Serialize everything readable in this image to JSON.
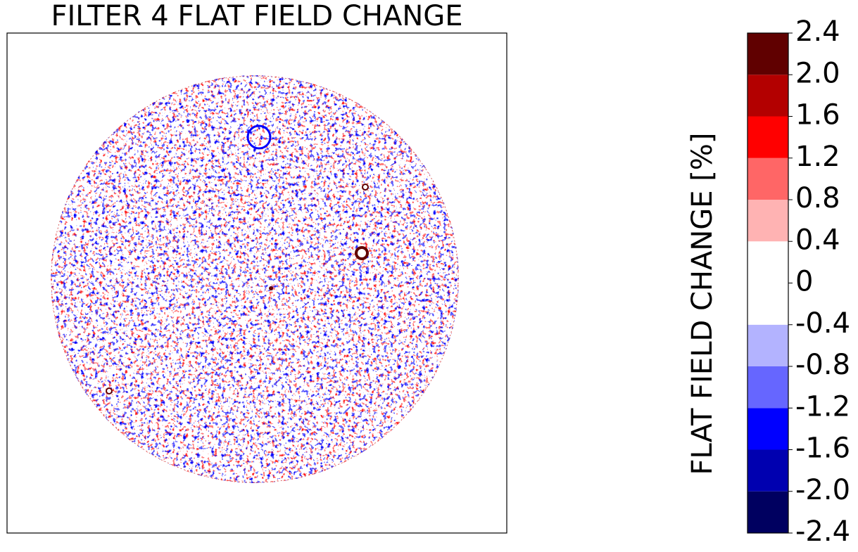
{
  "chart_data": {
    "type": "image",
    "title": "FILTER 4 FLAT FIELD CHANGE",
    "colorbar": {
      "label": "FLAT FIELD CHANGE [%]",
      "boundaries": [
        -2.4,
        -2.0,
        -1.6,
        -1.2,
        -0.8,
        -0.4,
        0,
        0.4,
        0.8,
        1.2,
        1.6,
        2.0,
        2.4
      ],
      "colors": [
        "#000060",
        "#0000b0",
        "#0000ff",
        "#6666ff",
        "#b3b3ff",
        "#ffffff",
        "#ffffff",
        "#ffb3b3",
        "#ff6666",
        "#ff0000",
        "#b30000",
        "#600000"
      ],
      "ticks": [
        -2.4,
        {
          "value": -2.0,
          "label": "-2.0"
        },
        -1.6,
        -1.2,
        -0.8,
        -0.4,
        0,
        0.4,
        0.8,
        1.2,
        1.6,
        {
          "value": 2.0,
          "label": "2.0"
        },
        2.4
      ]
    }
  }
}
